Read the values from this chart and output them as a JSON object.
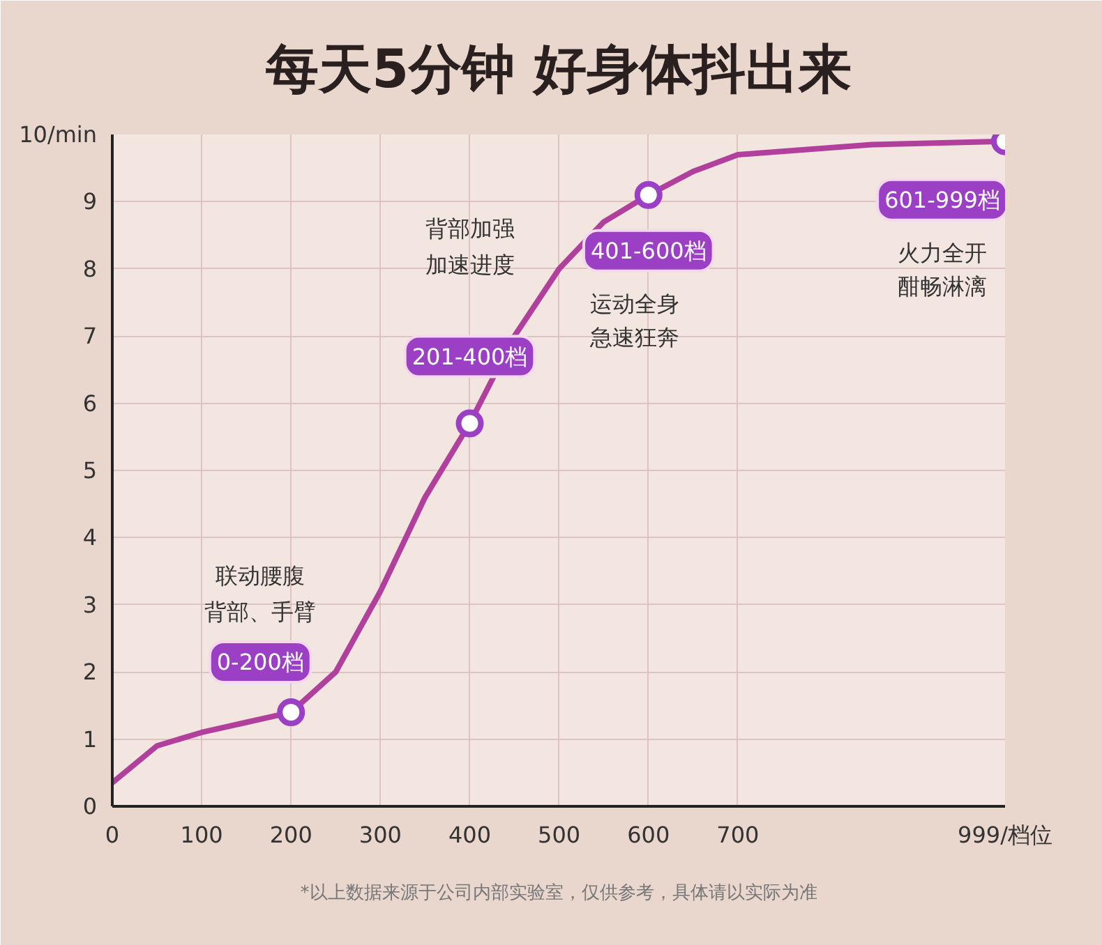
{
  "chart_data": {
    "type": "line",
    "title": "每天5分钟 好身体抖出来",
    "x": [
      0,
      50,
      100,
      150,
      200,
      250,
      300,
      350,
      400,
      450,
      500,
      550,
      600,
      650,
      700,
      850,
      999
    ],
    "series": [
      {
        "color": "#b0409c",
        "values": [
          0.35,
          0.9,
          1.1,
          1.25,
          1.4,
          2.0,
          3.2,
          4.6,
          5.7,
          7.0,
          8.0,
          8.7,
          9.1,
          9.45,
          9.7,
          9.85,
          9.9
        ]
      },
      {
        "type": "scatter",
        "color": "#9b3fc4",
        "x": [
          200,
          400,
          600,
          999
        ],
        "values": [
          1.4,
          5.7,
          9.1,
          9.9
        ],
        "marker": "circle"
      }
    ],
    "xlim": [
      0,
      999
    ],
    "ylim": [
      0,
      10
    ],
    "xticks": [
      0,
      100,
      200,
      300,
      400,
      500,
      600,
      700,
      {
        "value": 999,
        "label": "999/档位"
      }
    ],
    "yticks": [
      0,
      1,
      2,
      3,
      4,
      5,
      6,
      7,
      8,
      9,
      {
        "value": 10,
        "label": "10/min"
      }
    ],
    "grid": true,
    "line_style": "solid",
    "annotations": [
      "联动腰腹",
      "背部、手臂",
      {
        "text": "0-200档",
        "x": 200,
        "y": 1.4
      },
      "背部加强",
      "加速进度",
      {
        "text": "201-400档",
        "x": 400,
        "y": 5.7
      },
      {
        "text": "401-600档",
        "x": 600,
        "y": 9.1
      },
      "运动全身",
      "急速狂奔",
      {
        "text": "601-999档",
        "x": 999,
        "y": 9.9
      },
      "火力全开",
      "酣畅淋漓",
      "*以上数据来源于公司内部实验室，仅供参考，具体请以实际为准"
    ]
  }
}
